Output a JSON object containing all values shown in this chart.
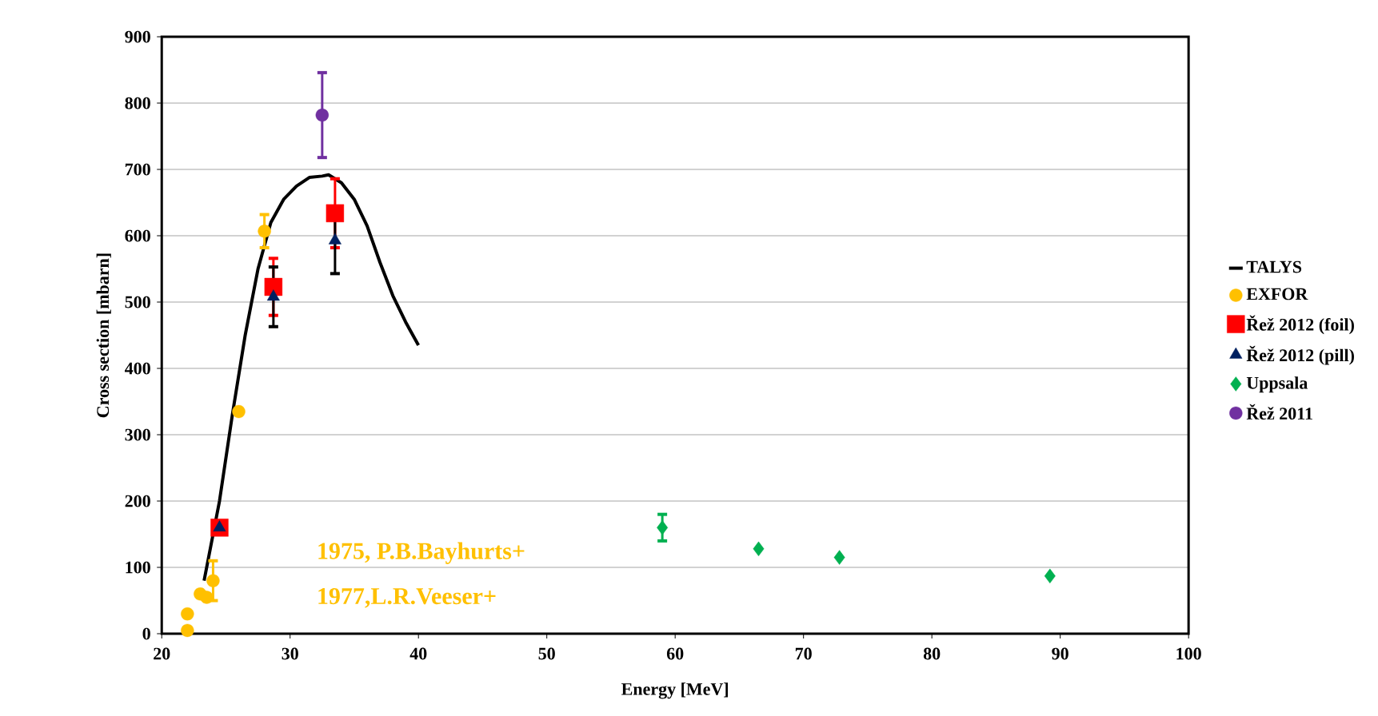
{
  "chart_data": {
    "type": "scatter",
    "xlabel": "Energy [MeV]",
    "ylabel": "Cross section [mbarn]",
    "xlim": [
      20,
      100
    ],
    "ylim": [
      0,
      900
    ],
    "xticks": [
      20,
      30,
      40,
      50,
      60,
      70,
      80,
      90,
      100
    ],
    "yticks": [
      0,
      100,
      200,
      300,
      400,
      500,
      600,
      700,
      800,
      900
    ],
    "grid": "y",
    "legend": "right",
    "annotations": [
      "1975, P.B.Bayhurts+",
      "1977,L.R.Veeser+"
    ],
    "series": [
      {
        "name": "TALYS",
        "type": "line",
        "color": "#000000",
        "marker": "none",
        "line_style": "solid",
        "x": [
          23.3,
          24.5,
          25.5,
          26.5,
          27.5,
          28.5,
          29.5,
          30.5,
          31.5,
          32.5,
          33,
          34,
          35,
          36,
          37,
          38,
          39,
          40
        ],
        "values": [
          80,
          200,
          330,
          450,
          550,
          620,
          655,
          675,
          688,
          690,
          692,
          680,
          655,
          615,
          560,
          510,
          470,
          435
        ]
      },
      {
        "name": "EXFOR",
        "color": "#ffc000",
        "marker": "circle",
        "x": [
          22,
          22,
          23,
          23.5,
          24,
          24.5,
          26,
          28
        ],
        "values": [
          30,
          5,
          60,
          55,
          80,
          null,
          335,
          607
        ],
        "errors": [
          null,
          null,
          null,
          null,
          30,
          null,
          null,
          25
        ]
      },
      {
        "name": "Řež 2012 (foil)",
        "color": "#ff0000",
        "marker": "square",
        "x": [
          24.5,
          28.7,
          33.5
        ],
        "values": [
          160,
          523,
          634
        ],
        "errors": [
          null,
          43,
          52
        ]
      },
      {
        "name": "Řež 2012 (pill)",
        "color": "#002060",
        "marker": "triangle",
        "x": [
          24.5,
          28.7,
          33.5
        ],
        "values": [
          160,
          508,
          593
        ],
        "errors": [
          null,
          45,
          50
        ]
      },
      {
        "name": "Uppsala",
        "color": "#00b050",
        "marker": "diamond",
        "x": [
          59,
          66.5,
          72.8,
          89.2
        ],
        "values": [
          160,
          128,
          115,
          87
        ],
        "errors": [
          20,
          null,
          null,
          null
        ]
      },
      {
        "name": "Řež 2011",
        "color": "#7030a0",
        "marker": "circle",
        "x": [
          32.5
        ],
        "values": [
          782
        ],
        "errors": [
          64
        ]
      }
    ]
  }
}
